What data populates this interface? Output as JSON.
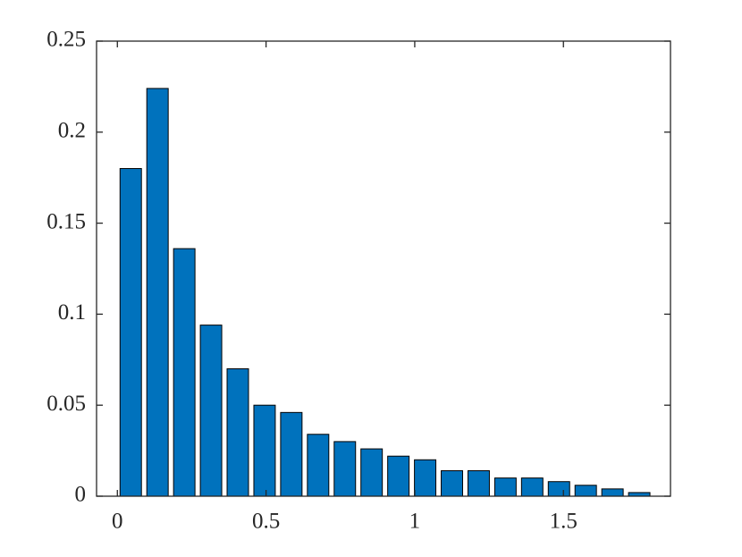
{
  "chart_data": {
    "type": "bar",
    "x": [
      0.045,
      0.135,
      0.225,
      0.315,
      0.405,
      0.495,
      0.585,
      0.675,
      0.765,
      0.855,
      0.945,
      1.035,
      1.125,
      1.215,
      1.305,
      1.395,
      1.485,
      1.575,
      1.665,
      1.755
    ],
    "values": [
      0.18,
      0.224,
      0.136,
      0.094,
      0.07,
      0.05,
      0.046,
      0.034,
      0.03,
      0.026,
      0.022,
      0.02,
      0.014,
      0.014,
      0.01,
      0.01,
      0.008,
      0.006,
      0.004,
      0.002
    ],
    "color": "#0072bd",
    "xlim": [
      -0.07,
      1.86
    ],
    "xticks": [
      0,
      0.5,
      1,
      1.5
    ],
    "ylim": [
      0,
      0.25
    ],
    "yticks": [
      0,
      0.05,
      0.1,
      0.15,
      0.2,
      0.25
    ]
  }
}
